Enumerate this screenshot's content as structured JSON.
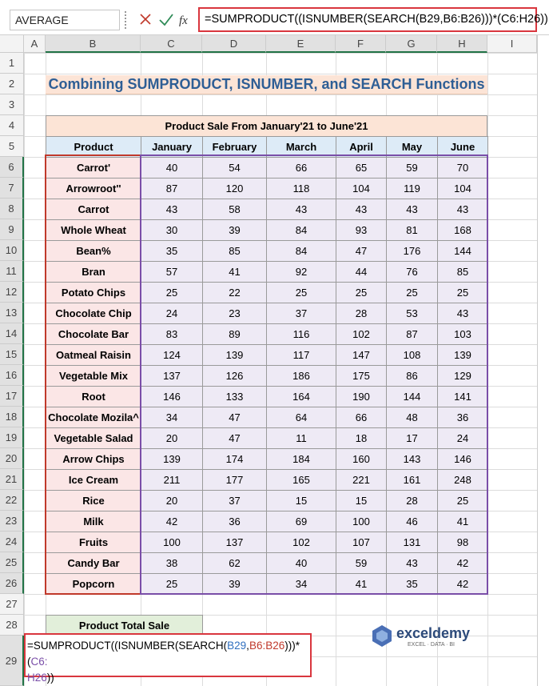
{
  "name_box": "AVERAGE",
  "formula_bar": {
    "fx": "fx",
    "formula": "=SUMPRODUCT((ISNUMBER(SEARCH(B29,B6:B26)))*(C6:H26))"
  },
  "column_headers": [
    "A",
    "B",
    "C",
    "D",
    "E",
    "F",
    "G",
    "H",
    "I"
  ],
  "row_headers": [
    1,
    2,
    3,
    4,
    5,
    6,
    7,
    8,
    9,
    10,
    11,
    12,
    13,
    14,
    15,
    16,
    17,
    18,
    19,
    20,
    21,
    22,
    23,
    24,
    25,
    26,
    27,
    28,
    29
  ],
  "title": "Combining SUMPRODUCT, ISNUMBER, and SEARCH Functions",
  "table": {
    "caption": "Product Sale From January'21 to June'21",
    "header": [
      "Product",
      "January",
      "February",
      "March",
      "April",
      "May",
      "June"
    ],
    "rows": [
      [
        "Carrot'",
        40,
        54,
        66,
        65,
        59,
        70
      ],
      [
        "Arrowroot''",
        87,
        120,
        118,
        104,
        119,
        104
      ],
      [
        "Carrot",
        43,
        58,
        43,
        43,
        43,
        43
      ],
      [
        "Whole Wheat",
        30,
        39,
        84,
        93,
        81,
        168
      ],
      [
        "Bean%",
        35,
        85,
        84,
        47,
        176,
        144
      ],
      [
        "Bran",
        57,
        41,
        92,
        44,
        76,
        85
      ],
      [
        "Potato Chips",
        25,
        22,
        25,
        25,
        25,
        25
      ],
      [
        "Chocolate Chip",
        24,
        23,
        37,
        28,
        53,
        43
      ],
      [
        "Chocolate Bar",
        83,
        89,
        116,
        102,
        87,
        103
      ],
      [
        "Oatmeal Raisin",
        124,
        139,
        117,
        147,
        108,
        139
      ],
      [
        "Vegetable Mix",
        137,
        126,
        186,
        175,
        86,
        129
      ],
      [
        "Root",
        146,
        133,
        164,
        190,
        144,
        141
      ],
      [
        "Chocolate Mozila^",
        34,
        47,
        64,
        66,
        48,
        36
      ],
      [
        "Vegetable Salad",
        20,
        47,
        11,
        18,
        17,
        24
      ],
      [
        "Arrow Chips",
        139,
        174,
        184,
        160,
        143,
        146
      ],
      [
        "Ice Cream",
        211,
        177,
        165,
        221,
        161,
        248
      ],
      [
        "Rice",
        20,
        37,
        15,
        15,
        28,
        25
      ],
      [
        "Milk",
        42,
        36,
        69,
        100,
        46,
        41
      ],
      [
        "Fruits",
        100,
        137,
        102,
        107,
        131,
        98
      ],
      [
        "Candy Bar",
        38,
        62,
        40,
        59,
        43,
        42
      ],
      [
        "Popcorn",
        25,
        39,
        34,
        41,
        35,
        42
      ]
    ]
  },
  "total_label": "Product Total Sale",
  "cell_edit": [
    "=SUMPRODUCT((ISNUMBER(SEARCH(",
    "B29",
    ",",
    "B6:B26",
    ")))*(",
    "C6:",
    "H26",
    "))"
  ],
  "logo": {
    "name": "exceldemy",
    "tagline": "EXCEL · DATA · BI"
  }
}
